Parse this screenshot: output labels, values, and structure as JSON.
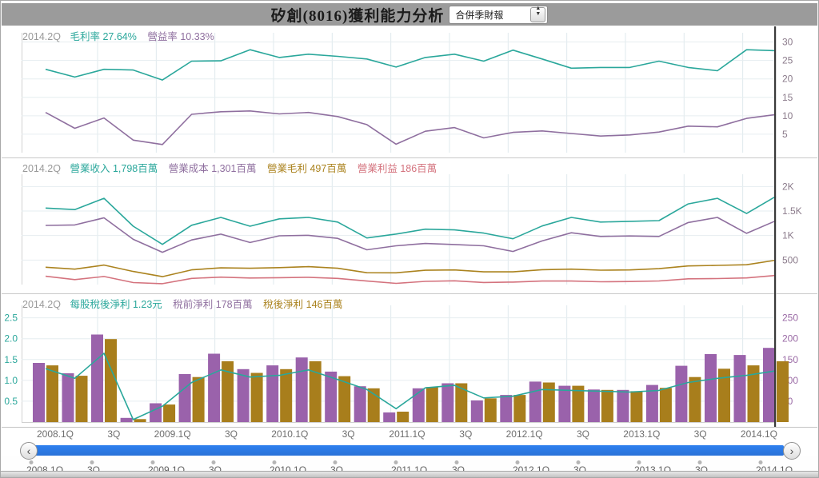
{
  "header": {
    "title": "矽創(8016)獲利能力分析",
    "report_select": {
      "value": "合併季財報"
    }
  },
  "cursor_quarter": "2014.2Q",
  "x_axis": {
    "labels": [
      "2008.1Q",
      "3Q",
      "2009.1Q",
      "3Q",
      "2010.1Q",
      "3Q",
      "2011.1Q",
      "3Q",
      "2012.1Q",
      "3Q",
      "2013.1Q",
      "3Q",
      "2014.1Q"
    ]
  },
  "colors": {
    "teal": "#2aa79b",
    "purple": "#8f6f9f",
    "olive": "#ab831f",
    "red": "#d4737e",
    "bar_purple": "#9a62ab",
    "bar_olive": "#a87e1c",
    "blue": "#2e80ef",
    "axis_gray": "#8b7b8b",
    "axis_right_purple": "#9a6aa5",
    "header_bg": "#9b9b9b",
    "cursor": "#3a3a3a",
    "grid_h": "#e6edf0",
    "grid_v": "#dfe9ed"
  },
  "chart_data": [
    {
      "type": "line",
      "grid": true,
      "legend_position": "top-left",
      "legend": {
        "period": "2014.2Q",
        "items": [
          {
            "label": "毛利率",
            "value": "27.64%",
            "color_key": "teal"
          },
          {
            "label": "營益率",
            "value": "10.33%",
            "color_key": "purple"
          }
        ]
      },
      "categories": [
        "2008.1Q",
        "2008.2Q",
        "2008.3Q",
        "2008.4Q",
        "2009.1Q",
        "2009.2Q",
        "2009.3Q",
        "2009.4Q",
        "2010.1Q",
        "2010.2Q",
        "2010.3Q",
        "2010.4Q",
        "2011.1Q",
        "2011.2Q",
        "2011.3Q",
        "2011.4Q",
        "2012.1Q",
        "2012.2Q",
        "2012.3Q",
        "2012.4Q",
        "2013.1Q",
        "2013.2Q",
        "2013.3Q",
        "2013.4Q",
        "2014.1Q",
        "2014.2Q"
      ],
      "ylim": [
        0,
        32.5
      ],
      "yticks": [
        {
          "v": 5,
          "label": "5"
        },
        {
          "v": 10,
          "label": "10"
        },
        {
          "v": 15,
          "label": "15"
        },
        {
          "v": 20,
          "label": "20"
        },
        {
          "v": 25,
          "label": "25"
        },
        {
          "v": 30,
          "label": "30"
        }
      ],
      "series": [
        {
          "name": "毛利率",
          "unit": "%",
          "color_key": "teal",
          "values": [
            22.6,
            20.5,
            22.6,
            22.4,
            19.7,
            24.8,
            24.9,
            27.9,
            25.8,
            26.7,
            26.1,
            25.4,
            23.2,
            25.8,
            26.7,
            24.8,
            27.8,
            25.4,
            22.9,
            23.1,
            23.1,
            24.8,
            23.1,
            22.2,
            27.9,
            27.64
          ]
        },
        {
          "name": "營益率",
          "unit": "%",
          "color_key": "purple",
          "values": [
            10.9,
            6.6,
            9.4,
            3.4,
            2.2,
            10.4,
            11.1,
            11.3,
            10.5,
            10.9,
            9.8,
            7.6,
            2.3,
            5.8,
            6.8,
            4.0,
            5.5,
            5.9,
            5.2,
            4.5,
            4.8,
            5.6,
            7.2,
            7.0,
            9.3,
            10.33
          ]
        }
      ]
    },
    {
      "type": "line",
      "grid": true,
      "legend_position": "top-left",
      "legend": {
        "period": "2014.2Q",
        "items": [
          {
            "label": "營業收入",
            "value": "1,798百萬",
            "color_key": "teal"
          },
          {
            "label": "營業成本",
            "value": "1,301百萬",
            "color_key": "purple"
          },
          {
            "label": "營業毛利",
            "value": "497百萬",
            "color_key": "olive"
          },
          {
            "label": "營業利益",
            "value": "186百萬",
            "color_key": "red"
          }
        ]
      },
      "categories": [
        "2008.1Q",
        "2008.2Q",
        "2008.3Q",
        "2008.4Q",
        "2009.1Q",
        "2009.2Q",
        "2009.3Q",
        "2009.4Q",
        "2010.1Q",
        "2010.2Q",
        "2010.3Q",
        "2010.4Q",
        "2011.1Q",
        "2011.2Q",
        "2011.3Q",
        "2011.4Q",
        "2012.1Q",
        "2012.2Q",
        "2012.3Q",
        "2012.4Q",
        "2013.1Q",
        "2013.2Q",
        "2013.3Q",
        "2013.4Q",
        "2014.1Q",
        "2014.2Q"
      ],
      "ylim": [
        0,
        2250
      ],
      "yticks": [
        {
          "v": 500,
          "label": "500"
        },
        {
          "v": 1000,
          "label": "1K"
        },
        {
          "v": 1500,
          "label": "1.5K"
        },
        {
          "v": 2000,
          "label": "2K"
        }
      ],
      "series": [
        {
          "name": "營業收入",
          "unit": "百萬",
          "color_key": "teal",
          "values": [
            1560,
            1530,
            1760,
            1190,
            820,
            1210,
            1370,
            1190,
            1340,
            1370,
            1275,
            950,
            1030,
            1130,
            1115,
            1050,
            935,
            1195,
            1370,
            1275,
            1290,
            1305,
            1645,
            1760,
            1450,
            1798
          ]
        },
        {
          "name": "營業成本",
          "unit": "百萬",
          "color_key": "purple",
          "values": [
            1207,
            1216,
            1362,
            923,
            658,
            910,
            1029,
            858,
            994,
            1004,
            942,
            709,
            791,
            838,
            817,
            790,
            675,
            891,
            1056,
            981,
            992,
            981,
            1265,
            1369,
            1045,
            1301
          ]
        },
        {
          "name": "營業毛利",
          "unit": "百萬",
          "color_key": "olive",
          "values": [
            353,
            314,
            398,
            267,
            162,
            300,
            341,
            332,
            346,
            366,
            333,
            241,
            239,
            292,
            298,
            260,
            260,
            304,
            314,
            294,
            298,
            324,
            380,
            391,
            405,
            497
          ]
        },
        {
          "name": "營業利益",
          "unit": "百萬",
          "color_key": "red",
          "values": [
            170,
            101,
            165,
            40,
            18,
            126,
            152,
            134,
            141,
            149,
            125,
            72,
            24,
            66,
            76,
            42,
            51,
            71,
            71,
            57,
            62,
            73,
            118,
            123,
            135,
            186
          ]
        }
      ]
    },
    {
      "type": "bar+line",
      "grid": true,
      "legend_position": "top-left",
      "legend": {
        "period": "2014.2Q",
        "items": [
          {
            "label": "每股稅後淨利",
            "value": "1.23元",
            "color_key": "teal"
          },
          {
            "label": "稅前淨利",
            "value": "178百萬",
            "color_key": "purple"
          },
          {
            "label": "稅後淨利",
            "value": "146百萬",
            "color_key": "olive"
          }
        ]
      },
      "categories": [
        "2008.1Q",
        "2008.2Q",
        "2008.3Q",
        "2008.4Q",
        "2009.1Q",
        "2009.2Q",
        "2009.3Q",
        "2009.4Q",
        "2010.1Q",
        "2010.2Q",
        "2010.3Q",
        "2010.4Q",
        "2011.1Q",
        "2011.2Q",
        "2011.3Q",
        "2011.4Q",
        "2012.1Q",
        "2012.2Q",
        "2012.3Q",
        "2012.4Q",
        "2013.1Q",
        "2013.2Q",
        "2013.3Q",
        "2013.4Q",
        "2014.1Q",
        "2014.2Q"
      ],
      "ylim_left": [
        0,
        2.8
      ],
      "ylim_right": [
        0,
        280
      ],
      "yticks_left": [
        {
          "v": 0.5,
          "label": "0.5"
        },
        {
          "v": 1.0,
          "label": "1.0"
        },
        {
          "v": 1.5,
          "label": "1.5"
        },
        {
          "v": 2.0,
          "label": "2.0"
        },
        {
          "v": 2.5,
          "label": "2.5"
        }
      ],
      "yticks_right": [
        {
          "v": 50,
          "label": "50"
        },
        {
          "v": 100,
          "label": "100"
        },
        {
          "v": 150,
          "label": "150"
        },
        {
          "v": 200,
          "label": "200"
        },
        {
          "v": 250,
          "label": "250"
        }
      ],
      "bar_series": [
        {
          "name": "稅前淨利",
          "unit": "百萬",
          "axis": "right",
          "color_key": "bar_purple",
          "values": [
            142,
            117,
            210,
            10,
            45,
            115,
            164,
            127,
            136,
            155,
            121,
            86,
            23,
            81,
            93,
            52,
            65,
            97,
            87,
            78,
            77,
            89,
            135,
            163,
            161,
            178
          ]
        },
        {
          "name": "稅後淨利",
          "unit": "百萬",
          "axis": "right",
          "color_key": "bar_olive",
          "values": [
            136,
            111,
            199,
            7,
            42,
            108,
            146,
            118,
            127,
            146,
            110,
            81,
            25,
            84,
            93,
            57,
            65,
            95,
            87,
            77,
            74,
            82,
            108,
            128,
            136,
            146
          ]
        }
      ],
      "line_series": [
        {
          "name": "每股稅後淨利",
          "unit": "元",
          "axis": "left",
          "color_key": "teal",
          "values": [
            1.28,
            1.05,
            1.65,
            0.06,
            0.38,
            0.95,
            1.25,
            1.08,
            1.12,
            1.25,
            1.02,
            0.78,
            0.32,
            0.82,
            0.88,
            0.58,
            0.62,
            0.78,
            0.76,
            0.74,
            0.72,
            0.76,
            0.95,
            1.05,
            1.12,
            1.23
          ]
        }
      ]
    }
  ]
}
